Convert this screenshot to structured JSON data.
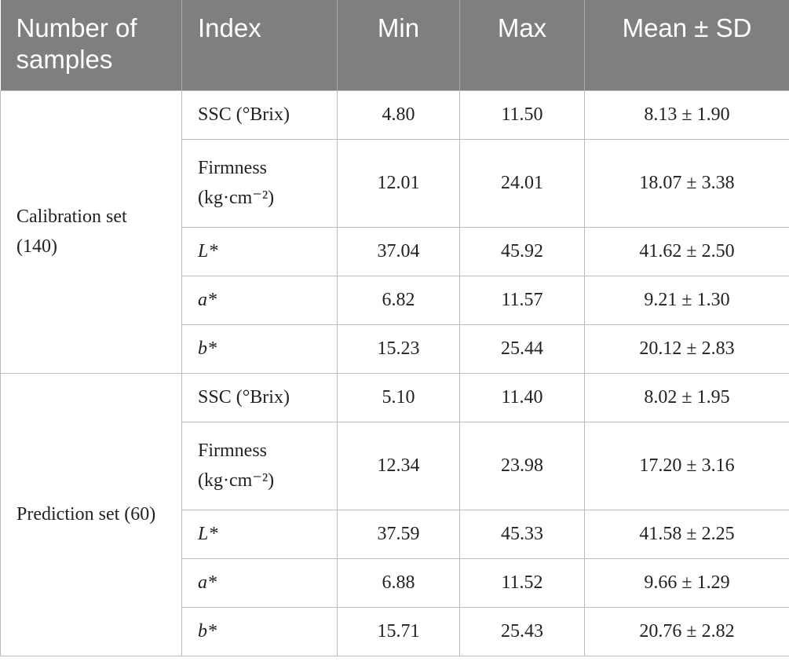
{
  "table": {
    "header": [
      "Number of samples",
      "Index",
      "Min",
      "Max",
      "Mean ± SD"
    ],
    "groups": [
      {
        "label": "Calibration set (140)",
        "rows": [
          [
            "SSC (°Brix)",
            "4.80",
            "11.50",
            "8.13 ± 1.90"
          ],
          [
            "Firmness (kg·cm⁻²)",
            "12.01",
            "24.01",
            "18.07 ± 3.38"
          ],
          [
            "L*",
            "37.04",
            "45.92",
            "41.62 ± 2.50"
          ],
          [
            "a*",
            "6.82",
            "11.57",
            "9.21 ± 1.30"
          ],
          [
            "b*",
            "15.23",
            "25.44",
            "20.12 ± 2.83"
          ]
        ]
      },
      {
        "label": "Prediction set (60)",
        "rows": [
          [
            "SSC (°Brix)",
            "5.10",
            "11.40",
            "8.02 ± 1.95"
          ],
          [
            "Firmness (kg·cm⁻²)",
            "12.34",
            "23.98",
            "17.20 ± 3.16"
          ],
          [
            "L*",
            "37.59",
            "45.33",
            "41.58 ± 2.25"
          ],
          [
            "a*",
            "6.88",
            "11.52",
            "9.66 ± 1.29"
          ],
          [
            "b*",
            "15.71",
            "25.43",
            "20.76 ± 2.82"
          ]
        ]
      }
    ]
  }
}
